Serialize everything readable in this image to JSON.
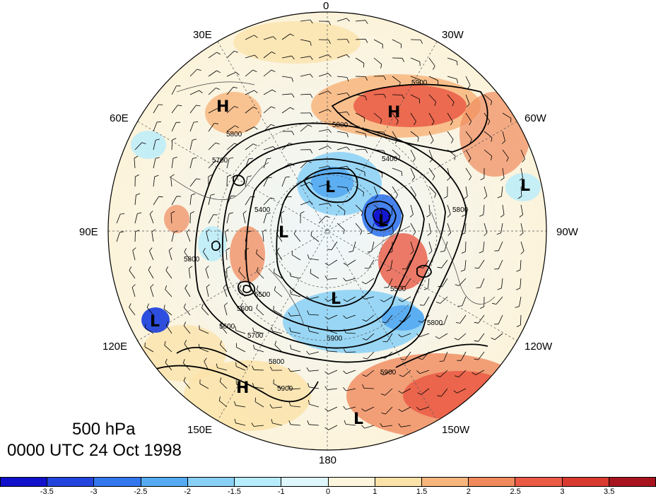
{
  "title": {
    "level": "500 hPa",
    "time": "0000 UTC 24 Oct 1998"
  },
  "longitude_labels": {
    "lon_0": "0",
    "lon_30w": "30W",
    "lon_60w": "60W",
    "lon_90w": "90W",
    "lon_120w": "120W",
    "lon_150w": "150W",
    "lon_180": "180",
    "lon_150e": "150E",
    "lon_120e": "120E",
    "lon_90e": "90E",
    "lon_60e": "60E",
    "lon_30e": "30E"
  },
  "pressure_centers": [
    {
      "type": "H",
      "label": "H",
      "color": "#000000"
    },
    {
      "type": "H",
      "label": "H",
      "color": "#000000"
    },
    {
      "type": "H",
      "label": "H",
      "color": "#000000"
    },
    {
      "type": "L",
      "label": "L",
      "color": "#000000"
    },
    {
      "type": "L",
      "label": "L",
      "color": "#000000"
    },
    {
      "type": "L",
      "label": "L",
      "color": "#000000"
    },
    {
      "type": "L",
      "label": "L",
      "color": "#000000"
    },
    {
      "type": "L",
      "label": "L",
      "color": "#000000"
    },
    {
      "type": "L",
      "label": "L",
      "color": "#000000"
    },
    {
      "type": "L",
      "label": "L",
      "color": "#000000"
    }
  ],
  "contour_labels": [
    "5900",
    "5800",
    "5400",
    "5700",
    "5800",
    "5800",
    "5400",
    "5500",
    "5600",
    "5500",
    "5700",
    "5600",
    "5900",
    "5800",
    "5800",
    "5900",
    "5900",
    "5800"
  ],
  "colorbar": {
    "bins": [
      "#1111cc",
      "#2244dd",
      "#3377ee",
      "#55aaf2",
      "#88d0f6",
      "#b6ecfb",
      "#dff6fc",
      "#fdf6dc",
      "#fbe2a8",
      "#f8b57c",
      "#f08a5c",
      "#ea5a45",
      "#d93a30",
      "#a8141e"
    ],
    "ticks": [
      "-3.5",
      "-3",
      "-2.5",
      "-2",
      "-1.5",
      "-1",
      "0",
      "1",
      "1.5",
      "2",
      "2.5",
      "3",
      "3.5"
    ]
  },
  "colors": {
    "ocean": "#e8f3f8",
    "warm": "#f4a07a",
    "cold": "#7fbfee",
    "deep_cold": "#1a33c8",
    "deep_warm": "#dd3b32"
  }
}
